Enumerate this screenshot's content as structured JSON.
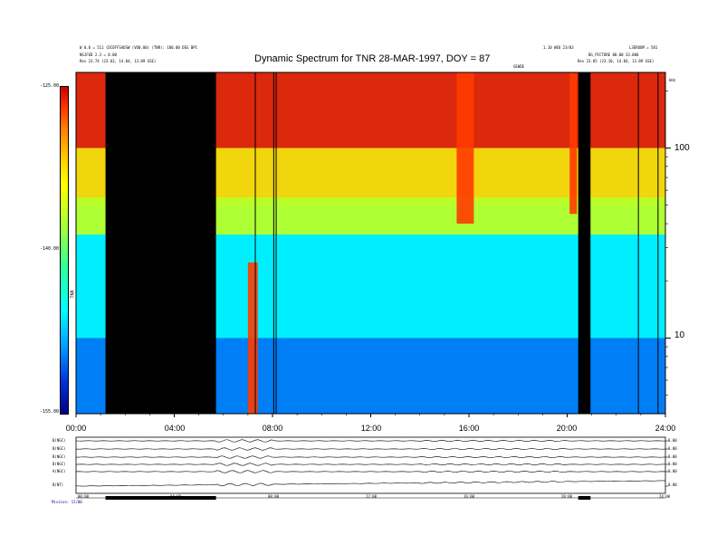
{
  "header": {
    "title": "Dynamic Spectrum for TNR 28-MAR-1997, DOY = 87",
    "left_lines": [
      "W 0.0 = 511 (DCOFFSADSW (VO0.00) (TNR): 180.00 DEG BPC",
      "NSJFEB 2.3 = 0.00",
      "Rev 23.74 (23.63, 14.84, 13.89 GSE)"
    ],
    "right_lines": [
      "1.10 WEO 23/03",
      "L3EROOM = 501",
      "BG_PICTURE 88.00 33.000",
      "Rev 23.85 (23.10, 14.84, 13.89 GSE)"
    ],
    "center_small": "GEWDE",
    "right_unit": "kHz"
  },
  "chart_data": {
    "type": "heatmap",
    "title": "Dynamic Spectrum for TNR 28-MAR-1997, DOY = 87",
    "x_ticks": [
      "00:00",
      "04:00",
      "08:00",
      "12:00",
      "16:00",
      "20:00",
      "24:00"
    ],
    "x_range_hours": [
      0,
      24
    ],
    "y_scale": "log",
    "y_right_ticks": [
      "100",
      "10"
    ],
    "y_right_tick_values": [
      100,
      10
    ],
    "y_range_khz": [
      4,
      250
    ],
    "colorbar_label": "TNR",
    "colorbar_ticks": [
      "-125.00",
      "-140.00",
      "-155.00"
    ],
    "colorbar_values": [
      -125,
      -140,
      -155
    ],
    "data_gaps_hours": [
      [
        1.2,
        5.7
      ],
      [
        20.45,
        20.95
      ]
    ],
    "vertical_lines_hours": [
      7.3,
      8.05,
      8.15,
      22.9,
      23.7
    ],
    "bands": [
      {
        "name": "top",
        "khz": [
          100,
          250
        ],
        "level": -126
      },
      {
        "name": "upper",
        "khz": [
          50,
          100
        ],
        "level": -132
      },
      {
        "name": "plasma_line",
        "khz": [
          35,
          55
        ],
        "level": -137
      },
      {
        "name": "middle",
        "khz": [
          10,
          35
        ],
        "level": -146
      },
      {
        "name": "bottom",
        "khz": [
          4,
          10
        ],
        "level": -150
      }
    ],
    "intense_bursts": [
      {
        "start_hours": 7.0,
        "end_hours": 7.4,
        "khz": [
          4,
          25
        ]
      },
      {
        "start_hours": 15.5,
        "end_hours": 16.2,
        "khz": [
          40,
          250
        ]
      },
      {
        "start_hours": 20.1,
        "end_hours": 20.4,
        "khz": [
          45,
          250
        ]
      }
    ]
  },
  "bottom_panels": {
    "labels": [
      "B(NGC)",
      "B(NGC)",
      "B(NGC)",
      "B(NGC)",
      "A(NGC)",
      "B(NT)"
    ],
    "right_labels": [
      "0.00",
      "0.00",
      "0.00",
      "0.00",
      "0.00",
      "0.00"
    ],
    "time_ticks": [
      "00:00",
      "04:00",
      "08:00",
      "12:00",
      "16:00",
      "20:00",
      "24:00"
    ],
    "footer_label": "Mission: 15/00"
  }
}
